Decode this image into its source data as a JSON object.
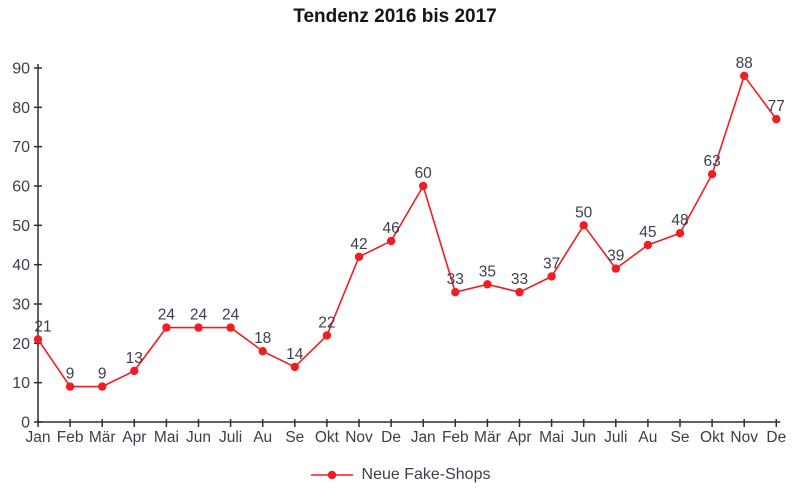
{
  "title": "Tendenz 2016 bis 2017",
  "legend": {
    "label": "Neue Fake-Shops"
  },
  "colors": {
    "line": "#f01e23",
    "marker": "#f01e23",
    "axis": "#2e2e33",
    "tick_label": "#3d3e4a",
    "value_label": "#3d3e4a",
    "title": "#141414"
  },
  "chart_data": {
    "type": "line",
    "title": "Tendenz 2016 bis 2017",
    "categories": [
      "Jan",
      "Feb",
      "Mär",
      "Apr",
      "Mai",
      "Jun",
      "Juli",
      "Au",
      "Se",
      "Okt",
      "Nov",
      "De",
      "Jan",
      "Feb",
      "Mär",
      "Apr",
      "Mai",
      "Jun",
      "Juli",
      "Au",
      "Se",
      "Okt",
      "Nov",
      "De"
    ],
    "series": [
      {
        "name": "Neue Fake-Shops",
        "values": [
          21,
          9,
          9,
          13,
          24,
          24,
          24,
          18,
          14,
          22,
          42,
          46,
          60,
          33,
          35,
          33,
          37,
          50,
          39,
          45,
          48,
          63,
          88,
          77
        ]
      }
    ],
    "xlabel": "",
    "ylabel": "",
    "ylim": [
      0,
      90
    ],
    "yticks": [
      0,
      10,
      20,
      30,
      40,
      50,
      60,
      70,
      80,
      90
    ],
    "grid": false,
    "data_labels": true,
    "legend_position": "bottom"
  }
}
